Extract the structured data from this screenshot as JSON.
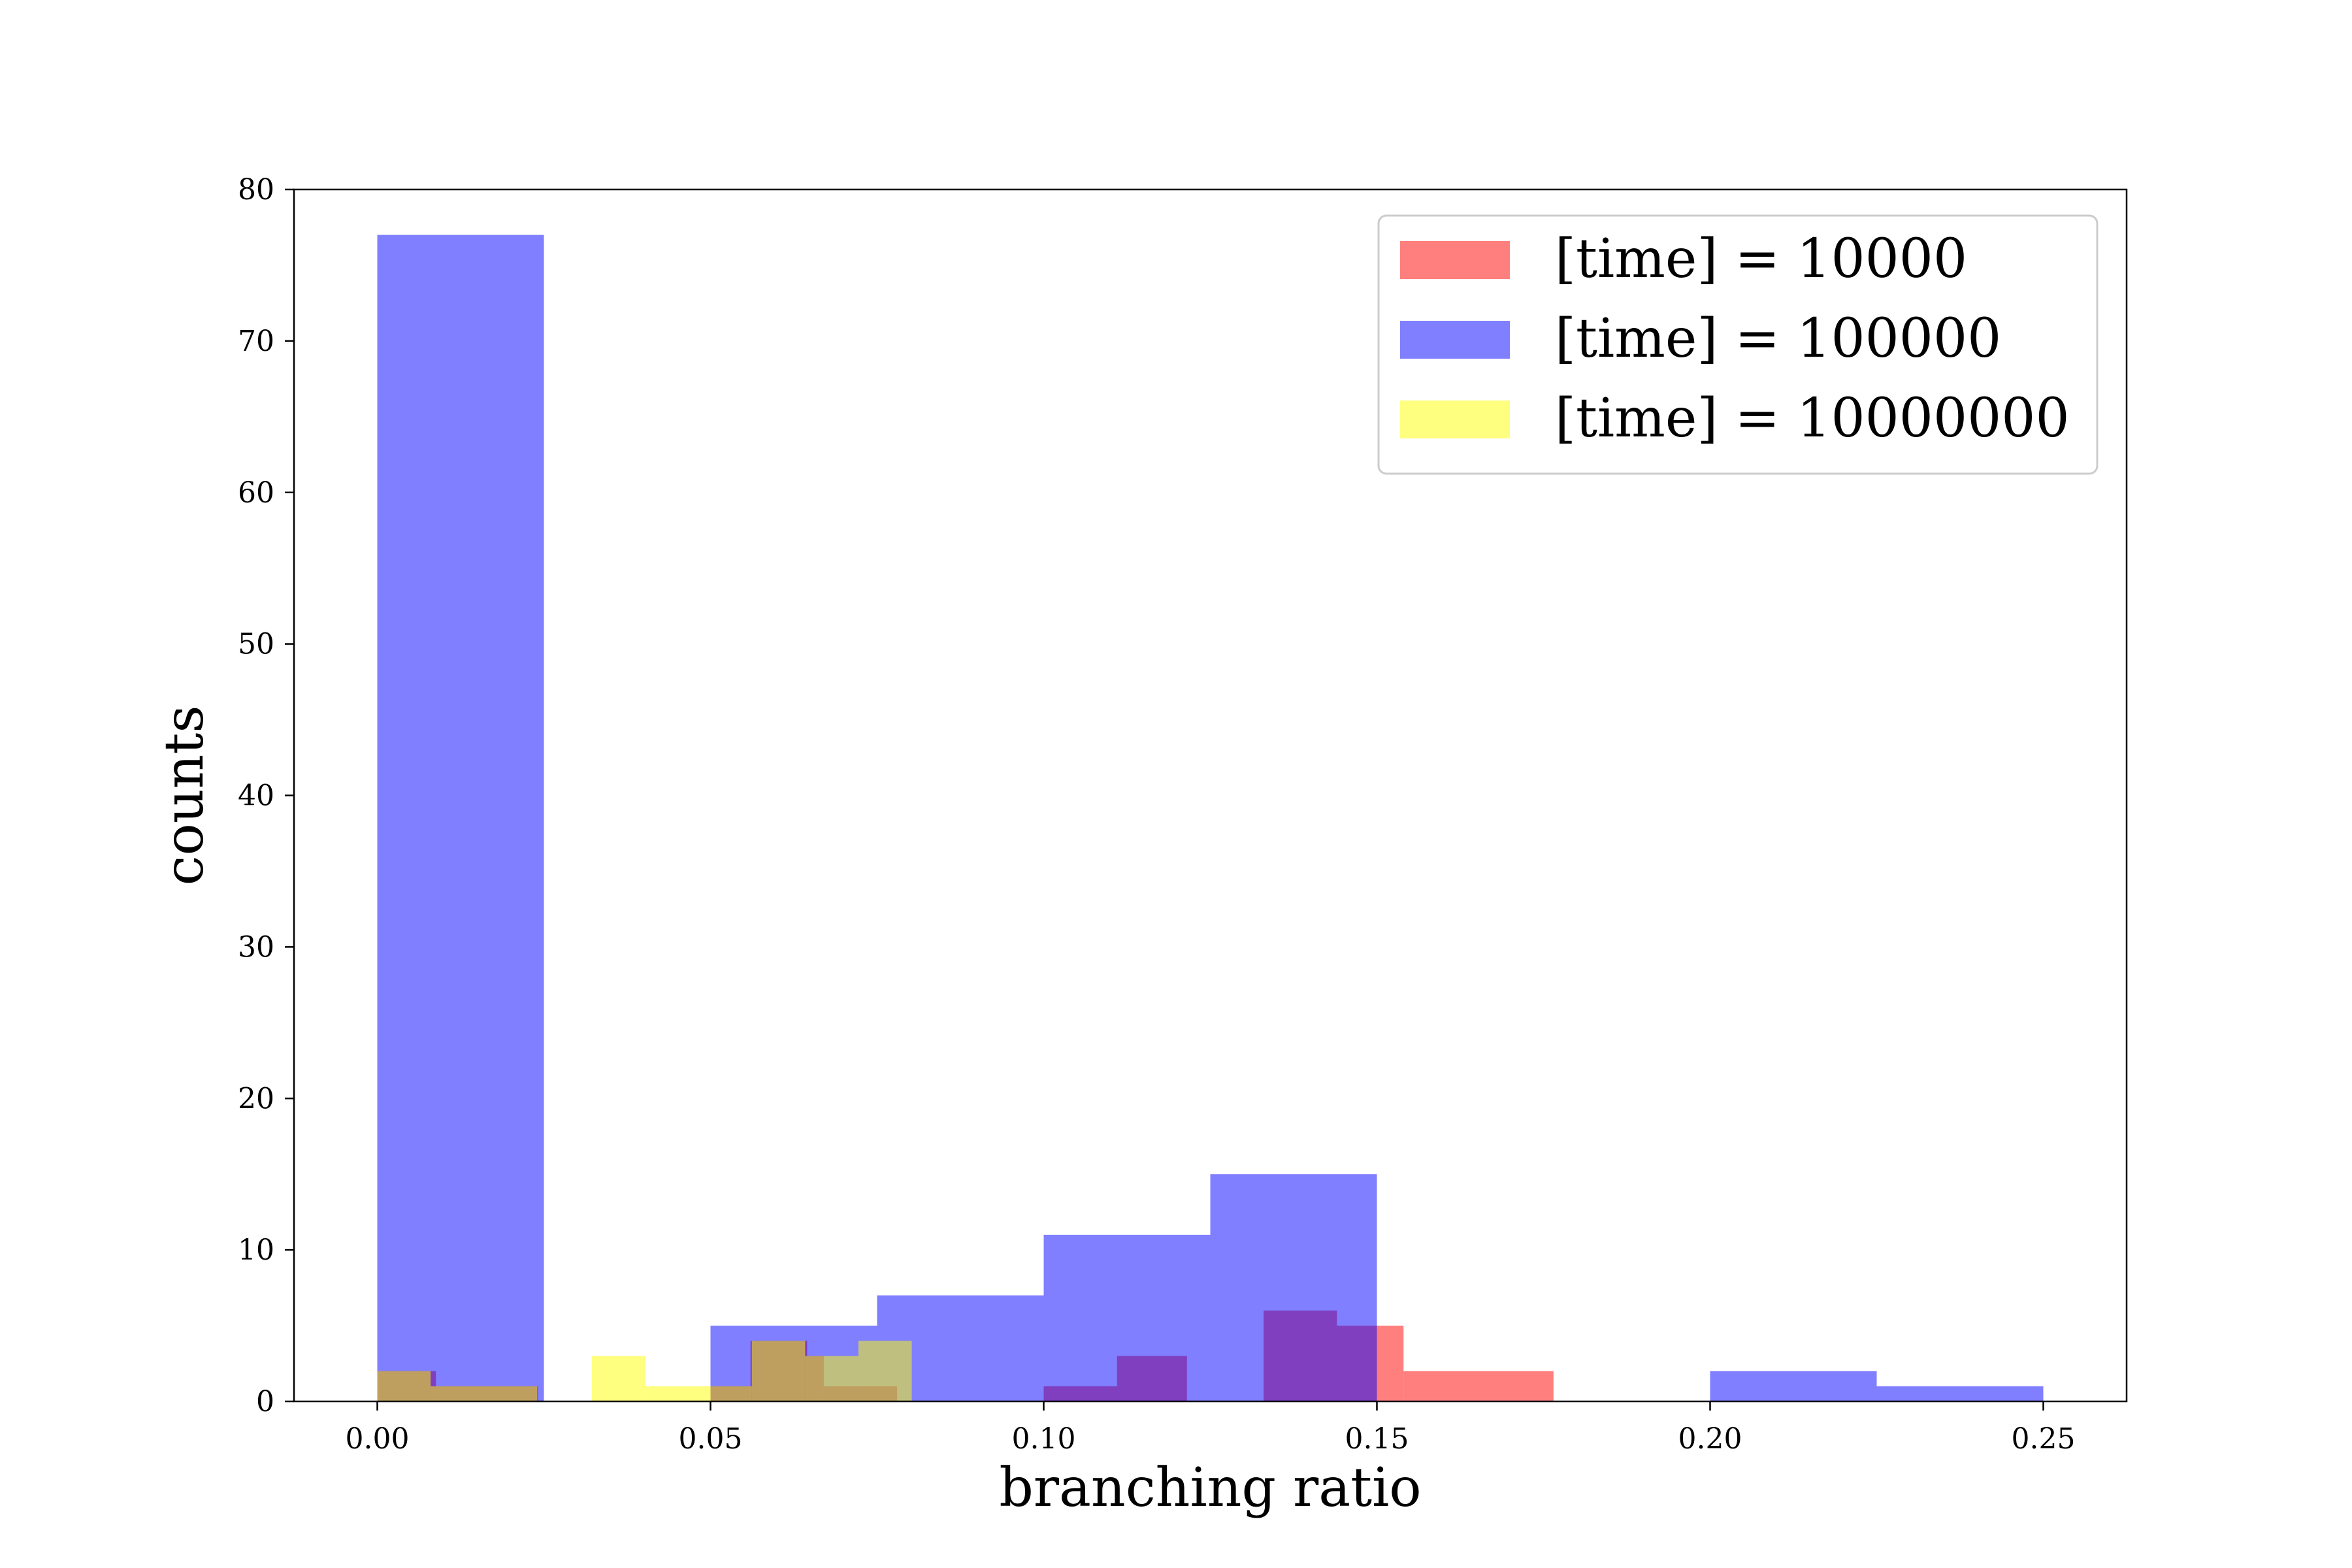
{
  "chart_data": {
    "type": "bar",
    "subtype": "histogram",
    "xlabel": "branching ratio",
    "ylabel": "counts",
    "xlim": [
      -0.0125,
      0.2625
    ],
    "ylim": [
      0,
      80
    ],
    "xticks": [
      "0.00",
      "0.05",
      "0.10",
      "0.15",
      "0.20",
      "0.25"
    ],
    "yticks": [
      "0",
      "10",
      "20",
      "30",
      "40",
      "50",
      "60",
      "70",
      "80"
    ],
    "legend_position": "top-right",
    "grid": false,
    "series": [
      {
        "name": "[time] = 10000",
        "color": "#ff0000",
        "alpha": 0.5,
        "bins": [
          {
            "x0": 0.0,
            "x1": 0.0088,
            "count": 2
          },
          {
            "x0": 0.0088,
            "x1": 0.0176,
            "count": 1
          },
          {
            "x0": 0.0176,
            "x1": 0.0241,
            "count": 1
          },
          {
            "x0": 0.05,
            "x1": 0.056,
            "count": 1
          },
          {
            "x0": 0.056,
            "x1": 0.0645,
            "count": 4
          },
          {
            "x0": 0.0645,
            "x1": 0.067,
            "count": 3
          },
          {
            "x0": 0.067,
            "x1": 0.078,
            "count": 1
          },
          {
            "x0": 0.1,
            "x1": 0.111,
            "count": 1
          },
          {
            "x0": 0.111,
            "x1": 0.1215,
            "count": 3
          },
          {
            "x0": 0.133,
            "x1": 0.144,
            "count": 6
          },
          {
            "x0": 0.144,
            "x1": 0.154,
            "count": 5
          },
          {
            "x0": 0.154,
            "x1": 0.1765,
            "count": 2
          }
        ]
      },
      {
        "name": "[time] = 100000",
        "color": "#0000ff",
        "alpha": 0.5,
        "bins": [
          {
            "x0": 0.0,
            "x1": 0.025,
            "count": 77
          },
          {
            "x0": 0.05,
            "x1": 0.075,
            "count": 5
          },
          {
            "x0": 0.075,
            "x1": 0.1,
            "count": 7
          },
          {
            "x0": 0.1,
            "x1": 0.125,
            "count": 11
          },
          {
            "x0": 0.125,
            "x1": 0.15,
            "count": 15
          },
          {
            "x0": 0.2,
            "x1": 0.225,
            "count": 2
          },
          {
            "x0": 0.225,
            "x1": 0.25,
            "count": 1
          }
        ]
      },
      {
        "name": "[time] = 10000000",
        "color": "#ffff00",
        "alpha": 0.5,
        "bins": [
          {
            "x0": 0.0,
            "x1": 0.008,
            "count": 2
          },
          {
            "x0": 0.008,
            "x1": 0.024,
            "count": 1
          },
          {
            "x0": 0.0322,
            "x1": 0.0402,
            "count": 3
          },
          {
            "x0": 0.0402,
            "x1": 0.0562,
            "count": 1
          },
          {
            "x0": 0.0562,
            "x1": 0.0642,
            "count": 4
          },
          {
            "x0": 0.0642,
            "x1": 0.0722,
            "count": 3
          },
          {
            "x0": 0.0722,
            "x1": 0.0802,
            "count": 4
          }
        ]
      }
    ]
  }
}
